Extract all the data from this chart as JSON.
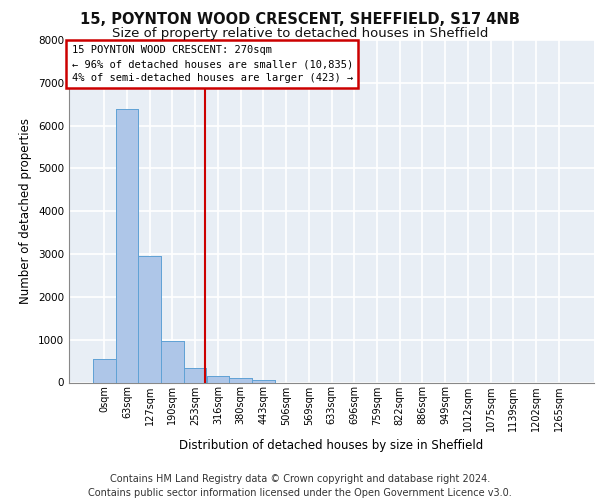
{
  "title1": "15, POYNTON WOOD CRESCENT, SHEFFIELD, S17 4NB",
  "title2": "Size of property relative to detached houses in Sheffield",
  "xlabel": "Distribution of detached houses by size in Sheffield",
  "ylabel": "Number of detached properties",
  "footnote1": "Contains HM Land Registry data © Crown copyright and database right 2024.",
  "footnote2": "Contains public sector information licensed under the Open Government Licence v3.0.",
  "bar_labels": [
    "0sqm",
    "63sqm",
    "127sqm",
    "190sqm",
    "253sqm",
    "316sqm",
    "380sqm",
    "443sqm",
    "506sqm",
    "569sqm",
    "633sqm",
    "696sqm",
    "759sqm",
    "822sqm",
    "886sqm",
    "949sqm",
    "1012sqm",
    "1075sqm",
    "1139sqm",
    "1202sqm",
    "1265sqm"
  ],
  "bar_values": [
    550,
    6400,
    2950,
    980,
    340,
    160,
    115,
    70,
    0,
    0,
    0,
    0,
    0,
    0,
    0,
    0,
    0,
    0,
    0,
    0,
    0
  ],
  "bar_color": "#aec6e8",
  "bar_edge_color": "#5a9fd4",
  "vline_color": "#cc0000",
  "vline_x": 4.42,
  "annotation_text": "15 POYNTON WOOD CRESCENT: 270sqm\n← 96% of detached houses are smaller (10,835)\n4% of semi-detached houses are larger (423) →",
  "annotation_box_color": "#cc0000",
  "ylim": [
    0,
    8000
  ],
  "yticks": [
    0,
    1000,
    2000,
    3000,
    4000,
    5000,
    6000,
    7000,
    8000
  ],
  "background_color": "#e8eef5",
  "grid_color": "#ffffff",
  "title1_fontsize": 10.5,
  "title2_fontsize": 9.5,
  "ylabel_fontsize": 8.5,
  "xlabel_fontsize": 8.5,
  "footnote_fontsize": 7,
  "tick_fontsize": 7,
  "annot_fontsize": 7.5
}
